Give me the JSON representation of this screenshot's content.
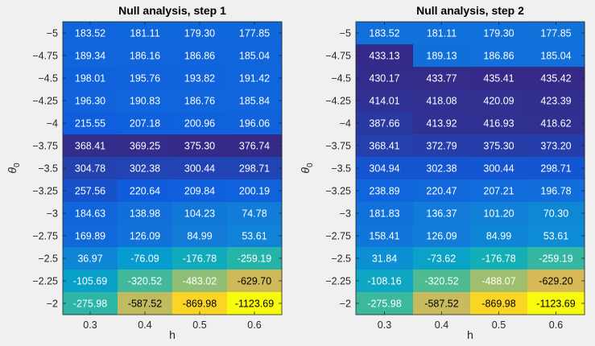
{
  "chart_data": [
    {
      "type": "heatmap",
      "title": "Null analysis, step 1",
      "xlabel": "h",
      "ylabel": "θ0",
      "x": [
        "0.3",
        "0.4",
        "0.5",
        "0.6"
      ],
      "y": [
        "-5",
        "-4.75",
        "-4.5",
        "-4.25",
        "-4",
        "-3.75",
        "-3.5",
        "-3.25",
        "-3",
        "-2.75",
        "-2.5",
        "-2.25",
        "-2"
      ],
      "values": [
        [
          183.52,
          181.11,
          179.3,
          177.85
        ],
        [
          189.34,
          186.16,
          186.86,
          185.04
        ],
        [
          198.01,
          195.76,
          193.82,
          191.42
        ],
        [
          196.3,
          190.83,
          186.76,
          185.84
        ],
        [
          215.55,
          207.18,
          200.96,
          196.06
        ],
        [
          368.41,
          369.25,
          375.3,
          376.74
        ],
        [
          304.78,
          302.38,
          300.44,
          298.71
        ],
        [
          257.56,
          220.64,
          209.84,
          200.19
        ],
        [
          184.63,
          138.98,
          104.23,
          74.78
        ],
        [
          169.89,
          126.09,
          84.99,
          53.61
        ],
        [
          36.97,
          -76.09,
          -176.78,
          -259.19
        ],
        [
          -105.69,
          -320.52,
          -483.02,
          -629.7
        ],
        [
          -275.98,
          -587.52,
          -869.98,
          -1123.69
        ]
      ]
    },
    {
      "type": "heatmap",
      "title": "Null analysis, step 2",
      "xlabel": "h",
      "ylabel": "θ0",
      "x": [
        "0.3",
        "0.4",
        "0.5",
        "0.6"
      ],
      "y": [
        "-5",
        "-4.75",
        "-4.5",
        "-4.25",
        "-4",
        "-3.75",
        "-3.5",
        "-3.25",
        "-3",
        "-2.75",
        "-2.5",
        "-2.25",
        "-2"
      ],
      "values": [
        [
          183.52,
          181.11,
          179.3,
          177.85
        ],
        [
          433.13,
          189.13,
          186.86,
          185.04
        ],
        [
          430.17,
          433.77,
          435.41,
          435.42
        ],
        [
          414.01,
          418.08,
          420.09,
          423.39
        ],
        [
          387.66,
          413.92,
          416.93,
          418.62
        ],
        [
          368.41,
          372.79,
          375.3,
          373.2
        ],
        [
          304.94,
          302.38,
          300.44,
          298.71
        ],
        [
          238.89,
          220.47,
          207.21,
          196.78
        ],
        [
          181.83,
          136.37,
          101.2,
          70.3
        ],
        [
          158.41,
          126.09,
          84.99,
          53.61
        ],
        [
          31.84,
          -73.62,
          -176.78,
          -259.19
        ],
        [
          -108.16,
          -320.52,
          -488.07,
          -629.2
        ],
        [
          -275.98,
          -587.52,
          -869.98,
          -1123.69
        ]
      ]
    }
  ]
}
